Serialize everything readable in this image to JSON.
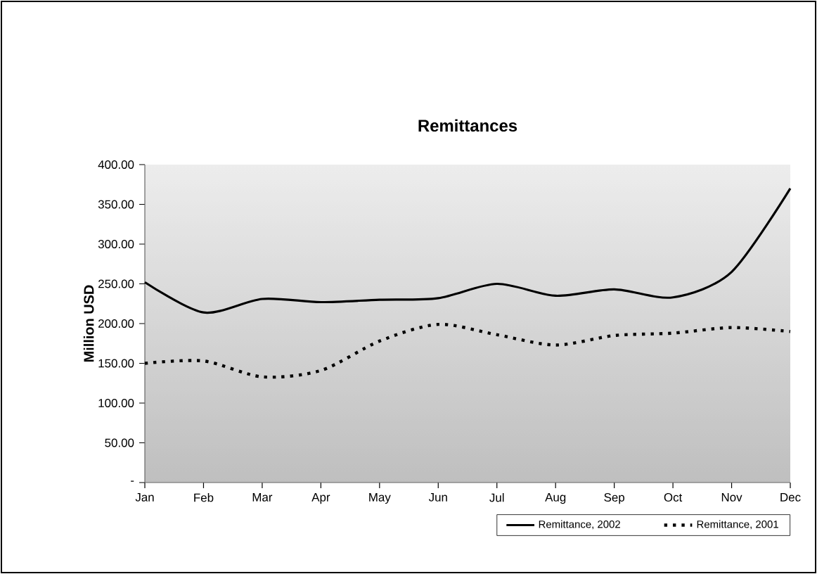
{
  "chart_data": {
    "type": "line",
    "title": "Remittances",
    "ylabel": "Million USD",
    "categories": [
      "Jan",
      "Feb",
      "Mar",
      "Apr",
      "May",
      "Jun",
      "Jul",
      "Aug",
      "Sep",
      "Oct",
      "Nov",
      "Dec"
    ],
    "series": [
      {
        "name": "Remittance, 2002",
        "color": "#000000",
        "line_style": "solid",
        "values": [
          252,
          214,
          231,
          227,
          230,
          232,
          250,
          235,
          243,
          233,
          265,
          370
        ]
      },
      {
        "name": "Remittance, 2001",
        "color": "#000000",
        "line_style": "dotted",
        "values": [
          150,
          153,
          133,
          141,
          178,
          199,
          186,
          173,
          185,
          188,
          195,
          190
        ]
      }
    ],
    "ylim": [
      0,
      400
    ],
    "yticks": [
      {
        "value": 0,
        "label": "-"
      },
      {
        "value": 50,
        "label": "50.00"
      },
      {
        "value": 100,
        "label": "100.00"
      },
      {
        "value": 150,
        "label": "150.00"
      },
      {
        "value": 200,
        "label": "200.00"
      },
      {
        "value": 250,
        "label": "250.00"
      },
      {
        "value": 300,
        "label": "300.00"
      },
      {
        "value": 350,
        "label": "350.00"
      },
      {
        "value": 400,
        "label": "400.00"
      }
    ],
    "grid": false,
    "legend": "bottom right",
    "marker": "none"
  }
}
